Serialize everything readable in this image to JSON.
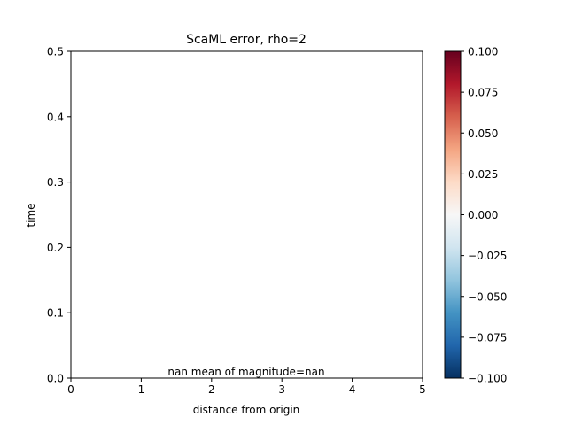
{
  "chart_data": {
    "type": "heatmap",
    "title": "ScaML error, rho=2",
    "xlabel": "distance from origin",
    "ylabel": "time",
    "xlim": [
      0,
      5
    ],
    "ylim": [
      0,
      0.5
    ],
    "x_ticks": [
      0,
      1,
      2,
      3,
      4,
      5
    ],
    "x_tick_labels": [
      "0",
      "1",
      "2",
      "3",
      "4",
      "5"
    ],
    "y_ticks": [
      0,
      0.1,
      0.2,
      0.3,
      0.4,
      0.5
    ],
    "y_tick_labels": [
      "0.0",
      "0.1",
      "0.2",
      "0.3",
      "0.4",
      "0.5"
    ],
    "values": [],
    "annotation": "nan mean of magnitude=nan",
    "colorbar": {
      "colormap": "RdBu_r",
      "range": [
        -0.1,
        0.1
      ],
      "ticks": [
        -0.1,
        -0.075,
        -0.05,
        -0.025,
        0,
        0.025,
        0.05,
        0.075,
        0.1
      ],
      "tick_labels": [
        "−0.100",
        "−0.075",
        "−0.050",
        "−0.025",
        "0.000",
        "0.025",
        "0.050",
        "0.075",
        "0.100"
      ],
      "colors": [
        "#053061",
        "#2166ac",
        "#4393c3",
        "#92c5de",
        "#d1e5f0",
        "#f7f7f7",
        "#fddbc7",
        "#f4a582",
        "#d6604d",
        "#b2182b",
        "#67001f"
      ]
    },
    "grid": false
  }
}
